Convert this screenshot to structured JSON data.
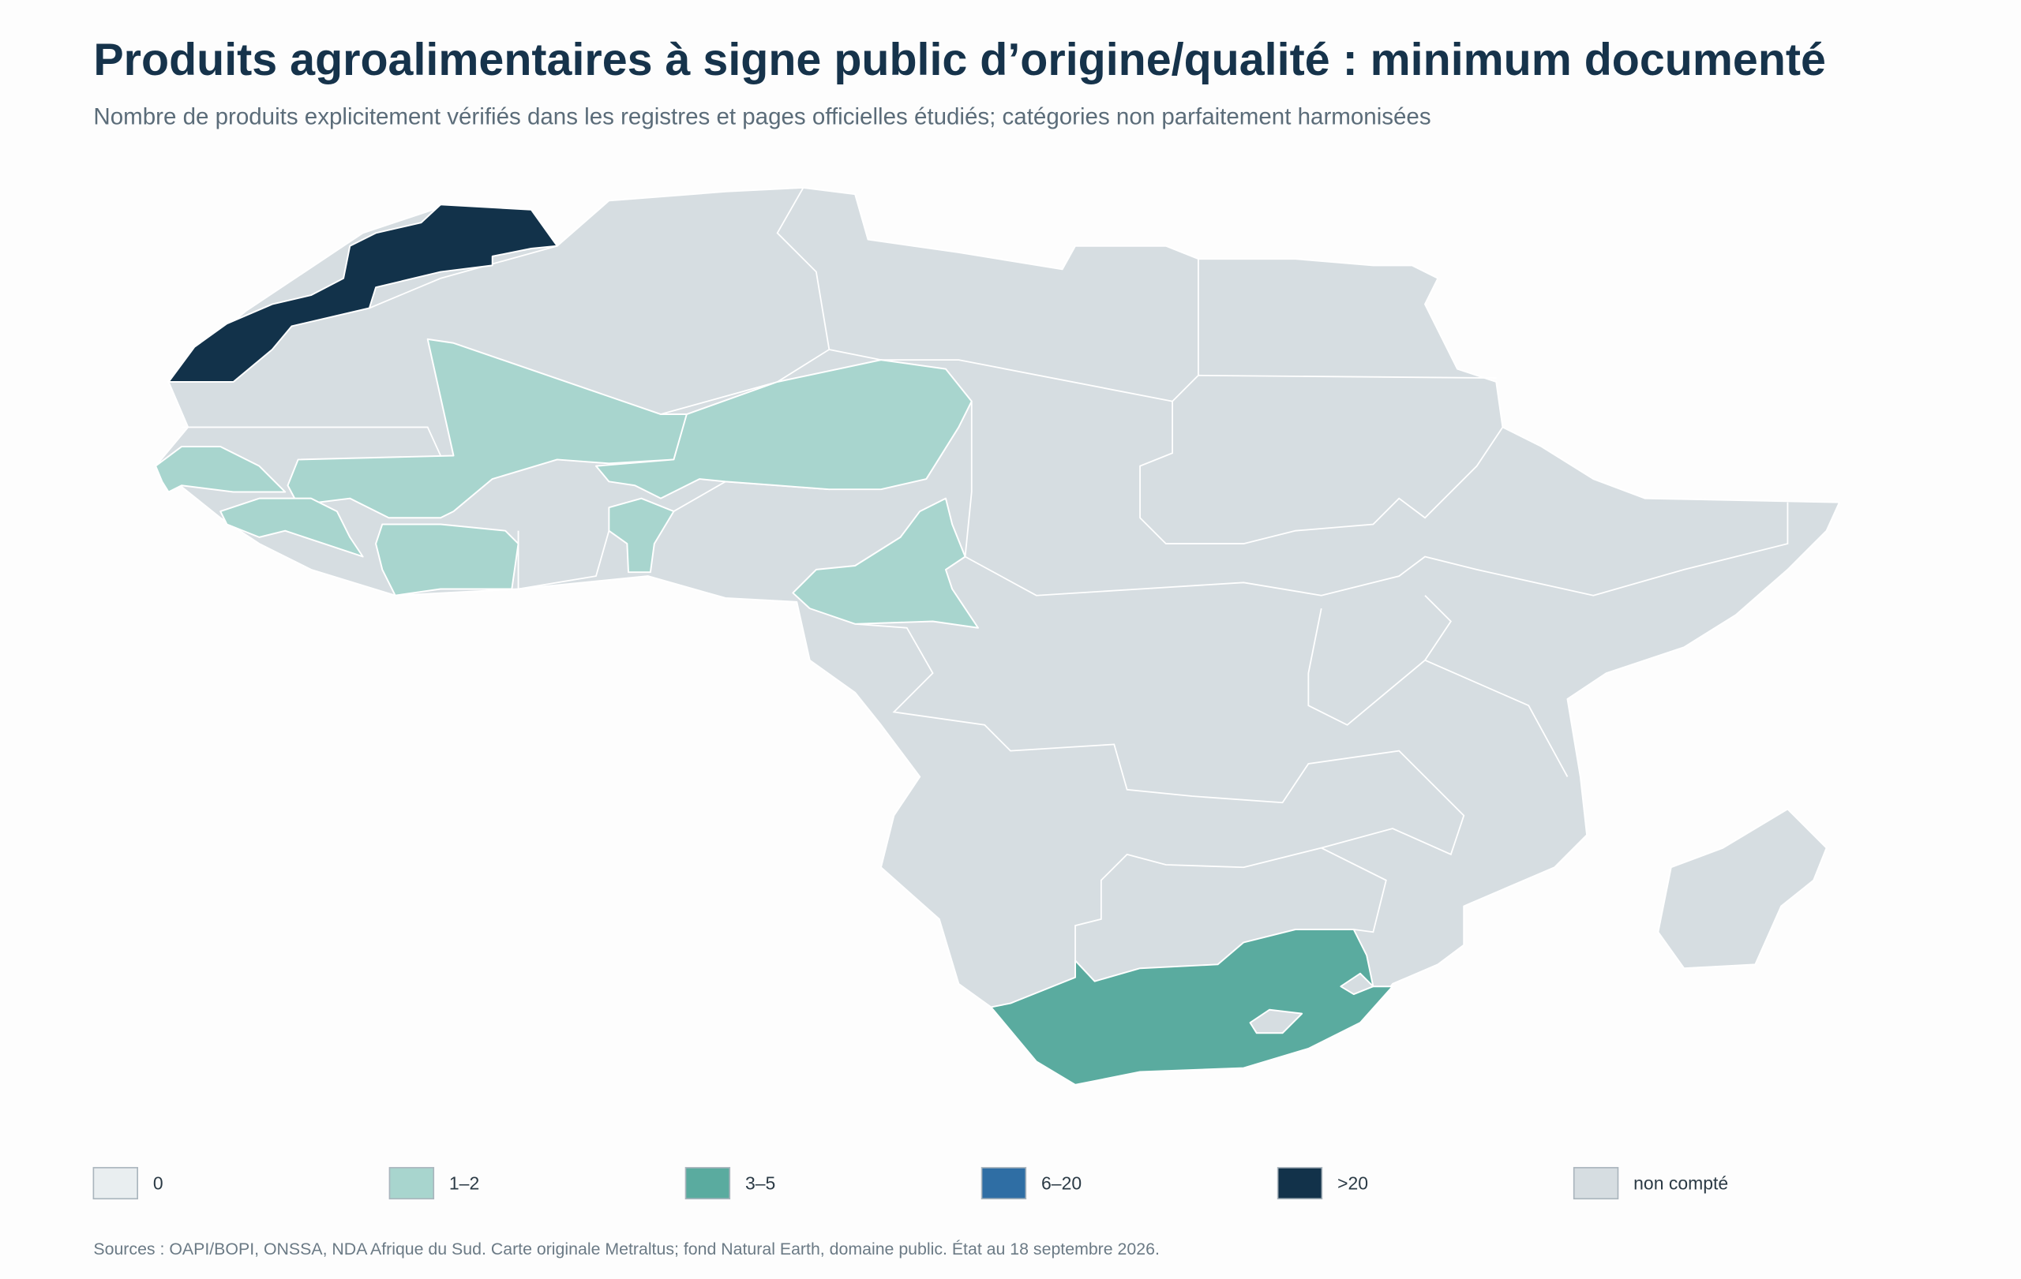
{
  "title": "Produits agroalimentaires à signe public d’origine/qualité : minimum documenté",
  "subtitle": "Nombre de produits explicitement vérifiés dans les registres et pages officielles étudiés; catégories non parfaitement harmonisées",
  "legend": [
    {
      "label": "0",
      "color": "#e9eef0"
    },
    {
      "label": "1–2",
      "color": "#a8d5ce"
    },
    {
      "label": "3–5",
      "color": "#5aab9f"
    },
    {
      "label": "6–20",
      "color": "#2f6ea4"
    },
    {
      "label": ">20",
      "color": "#12324a"
    },
    {
      "label": "non compté",
      "color": "#d6dde1"
    }
  ],
  "source": "Sources : OAPI/BOPI, ONSSA, NDA Afrique du Sud. Carte originale Metraltus; fond Natural Earth, domaine public. État au 18 septembre 2026."
}
